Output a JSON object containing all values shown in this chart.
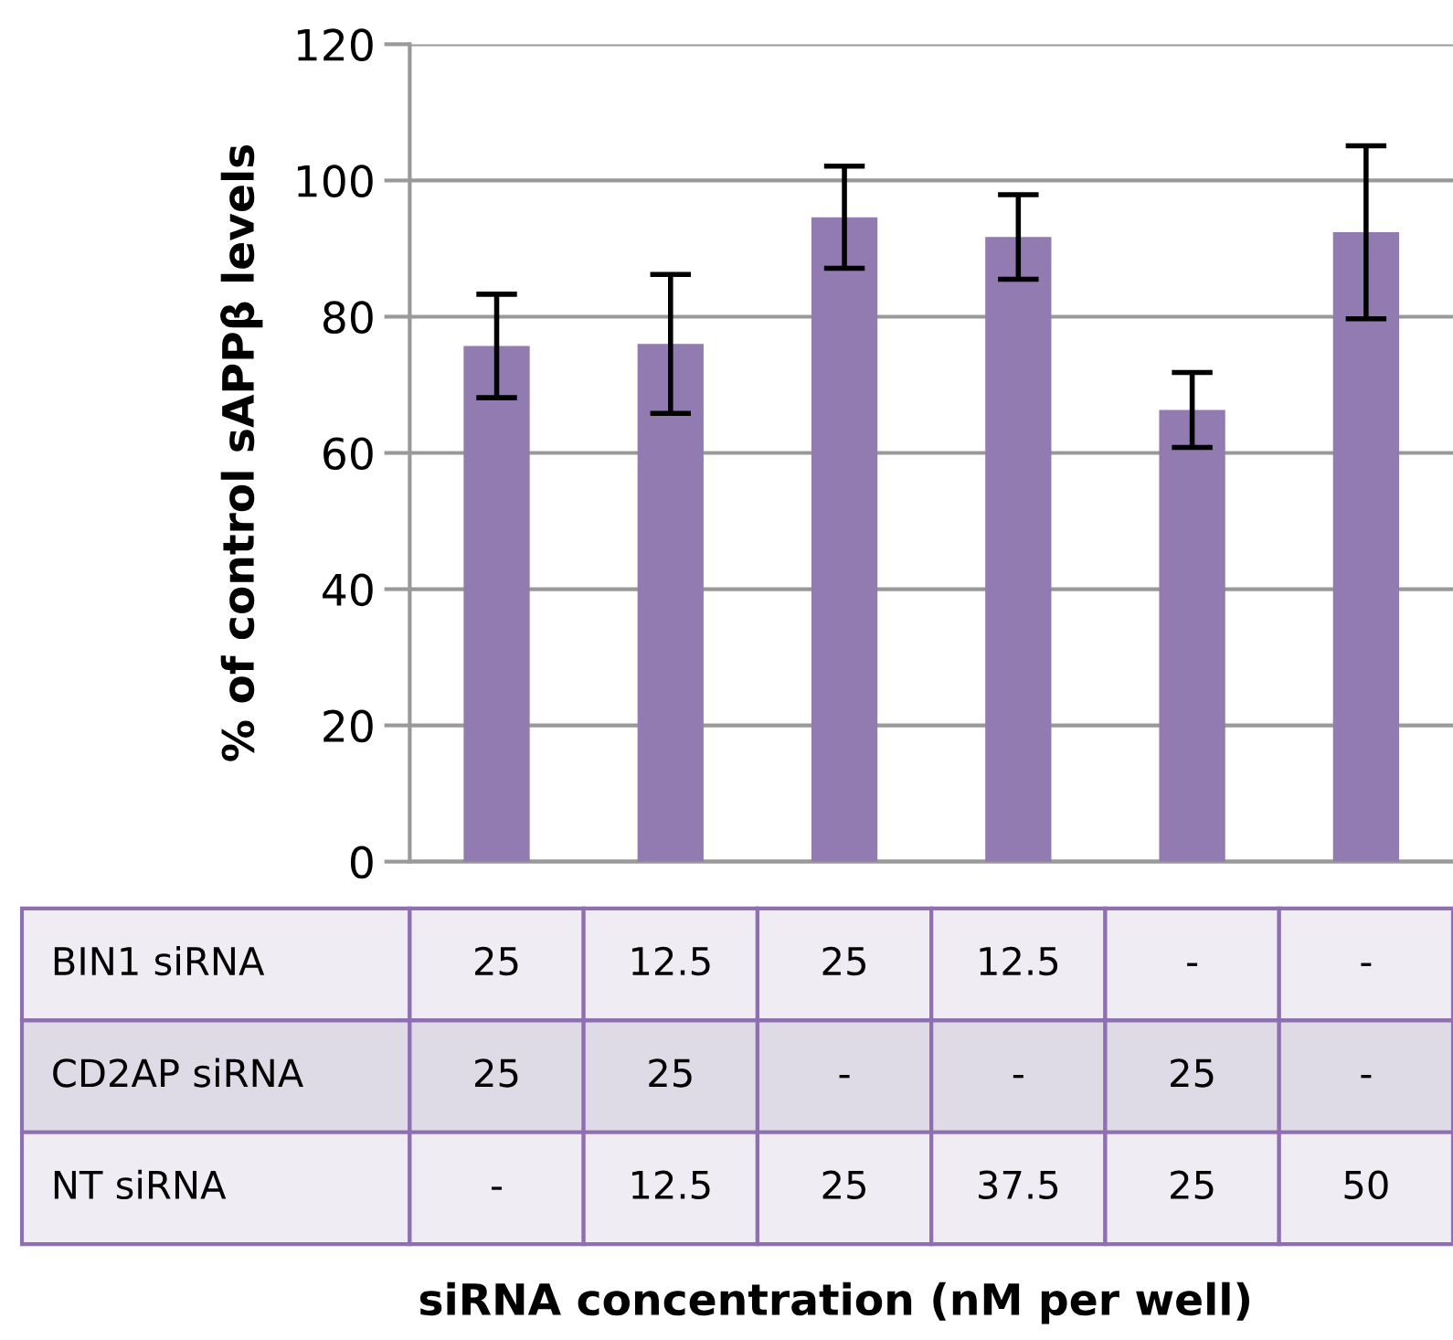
{
  "chart_data": {
    "type": "bar",
    "ylabel": "% of control sAPPβ levels",
    "categories": [
      "25\n25\n-",
      "12.5\n25\n12.5",
      "25\n-\n25",
      "12.5\n-\n37.5",
      "-\n25\n25",
      "-\n-\n50"
    ],
    "values": [
      75.7,
      76,
      94.6,
      91.7,
      66.3,
      92.4
    ],
    "errors": [
      7.6,
      10.2,
      7.5,
      6.2,
      5.5,
      12.7
    ],
    "color": "#917bb1",
    "annotations": [
      "BIN1 siRNA",
      "CD2AP siRNA",
      "NT siRNA",
      "siRNA concentration (nM per well)"
    ],
    "ylim": [
      0,
      120
    ],
    "yticks": [
      0,
      20,
      40,
      60,
      80,
      100,
      120
    ],
    "grid": "y",
    "legend": false
  }
}
